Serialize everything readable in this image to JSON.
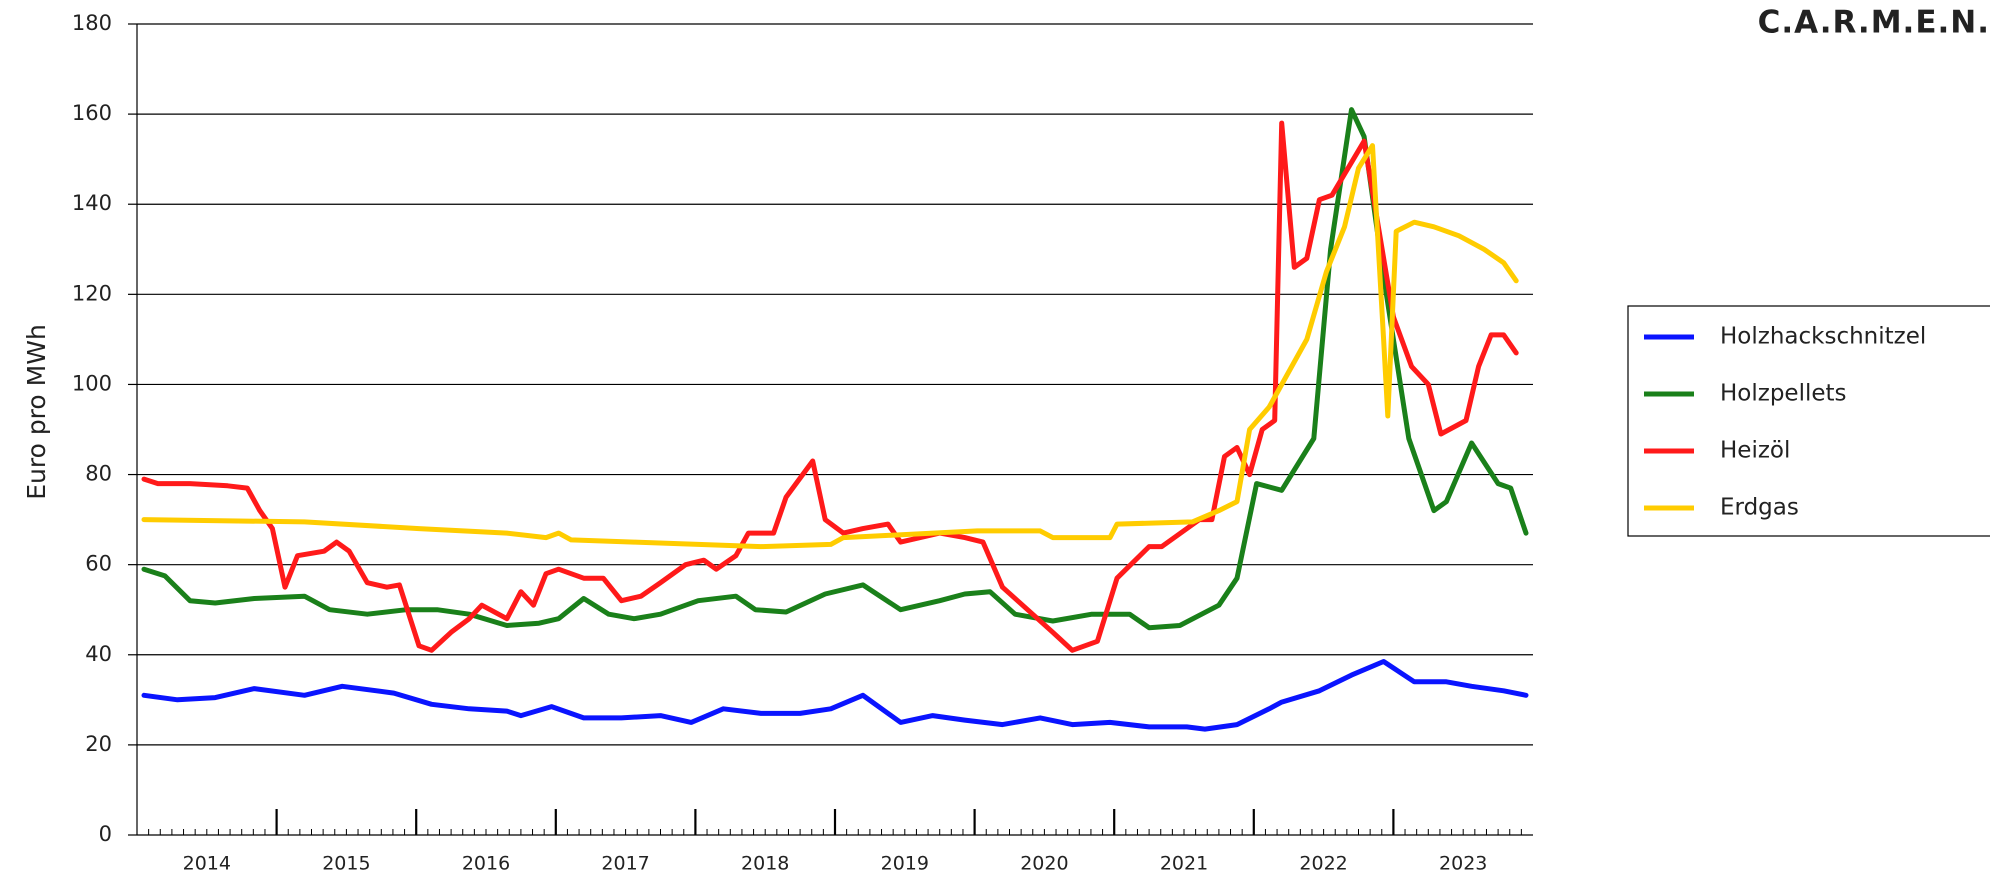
{
  "chart_data": {
    "type": "line",
    "brand": "C.A.R.M.E.N.",
    "y_label": "Euro pro MWh",
    "xlim": [
      2014,
      2024
    ],
    "ylim": [
      0,
      180
    ],
    "yticks": [
      0,
      20,
      40,
      60,
      80,
      100,
      120,
      140,
      160,
      180
    ],
    "xticks": [
      {
        "value": 2014.5,
        "label": "2014"
      },
      {
        "value": 2015.5,
        "label": "2015"
      },
      {
        "value": 2016.5,
        "label": "2016"
      },
      {
        "value": 2017.5,
        "label": "2017"
      },
      {
        "value": 2018.5,
        "label": "2018"
      },
      {
        "value": 2019.5,
        "label": "2019"
      },
      {
        "value": 2020.5,
        "label": "2020"
      },
      {
        "value": 2021.5,
        "label": "2021"
      },
      {
        "value": 2022.5,
        "label": "2022"
      },
      {
        "value": 2023.5,
        "label": "2023"
      }
    ],
    "grid": true,
    "legend": "right",
    "series": [
      {
        "name": "Holzhackschnitzel",
        "color": "#0a14ff",
        "x": [
          2014.05,
          2014.29,
          2014.56,
          2014.84,
          2015.2,
          2015.47,
          2015.84,
          2016.11,
          2016.38,
          2016.65,
          2016.75,
          2016.97,
          2017.2,
          2017.47,
          2017.75,
          2017.97,
          2018.2,
          2018.47,
          2018.75,
          2018.97,
          2019.2,
          2019.47,
          2019.7,
          2019.93,
          2020.2,
          2020.47,
          2020.7,
          2020.97,
          2021.25,
          2021.52,
          2021.65,
          2021.88,
          2022.11,
          2022.2,
          2022.47,
          2022.7,
          2022.93,
          2023.15,
          2023.38,
          2023.56,
          2023.79,
          2023.95
        ],
        "values": [
          31,
          30,
          30.5,
          32.5,
          31,
          33,
          31.5,
          29,
          28,
          27.5,
          26.5,
          28.5,
          26,
          26,
          26.5,
          25,
          28,
          27,
          27,
          28,
          31,
          25,
          26.5,
          25.5,
          24.5,
          26,
          24.5,
          25,
          24,
          24,
          23.5,
          24.5,
          28,
          29.5,
          32,
          35.5,
          38.5,
          34,
          34,
          33,
          32,
          31
        ]
      },
      {
        "name": "Holzpellets",
        "color": "#1a801a",
        "x": [
          2014.05,
          2014.2,
          2014.38,
          2014.56,
          2014.84,
          2015.2,
          2015.38,
          2015.65,
          2015.93,
          2016.15,
          2016.38,
          2016.65,
          2016.88,
          2017.02,
          2017.2,
          2017.38,
          2017.56,
          2017.75,
          2018.02,
          2018.29,
          2018.43,
          2018.65,
          2018.93,
          2019.2,
          2019.47,
          2019.75,
          2019.93,
          2020.11,
          2020.29,
          2020.56,
          2020.84,
          2021.11,
          2021.25,
          2021.47,
          2021.75,
          2021.88,
          2022.02,
          2022.2,
          2022.43,
          2022.55,
          2022.7,
          2022.79,
          2022.93,
          2023.11,
          2023.29,
          2023.38,
          2023.56,
          2023.75,
          2023.84,
          2023.95
        ],
        "values": [
          59,
          57.5,
          52,
          51.5,
          52.5,
          53,
          50,
          49,
          50,
          50,
          49,
          46.5,
          47,
          48,
          52.5,
          49,
          48,
          49,
          52,
          53,
          50,
          49.5,
          53.5,
          55.5,
          50,
          52,
          53.5,
          54,
          49,
          47.5,
          49,
          49,
          46,
          46.5,
          51,
          57,
          78,
          76.5,
          88,
          130,
          161,
          155,
          124,
          88,
          72,
          74,
          87,
          78,
          77,
          67
        ]
      },
      {
        "name": "Heizöl",
        "color": "#ff1a1a",
        "x": [
          2014.05,
          2014.15,
          2014.38,
          2014.65,
          2014.79,
          2014.88,
          2014.97,
          2015.06,
          2015.15,
          2015.34,
          2015.43,
          2015.52,
          2015.65,
          2015.79,
          2015.88,
          2016.02,
          2016.11,
          2016.25,
          2016.38,
          2016.47,
          2016.65,
          2016.75,
          2016.84,
          2016.93,
          2017.02,
          2017.2,
          2017.34,
          2017.47,
          2017.61,
          2017.75,
          2017.93,
          2018.06,
          2018.15,
          2018.29,
          2018.38,
          2018.56,
          2018.65,
          2018.84,
          2018.93,
          2019.06,
          2019.2,
          2019.38,
          2019.47,
          2019.61,
          2019.75,
          2019.93,
          2020.06,
          2020.2,
          2020.38,
          2020.56,
          2020.7,
          2020.88,
          2021.02,
          2021.25,
          2021.34,
          2021.52,
          2021.61,
          2021.7,
          2021.79,
          2021.88,
          2021.97,
          2022.06,
          2022.15,
          2022.2,
          2022.29,
          2022.38,
          2022.47,
          2022.56,
          2022.79,
          2023.0,
          2023.13,
          2023.25,
          2023.34,
          2023.52,
          2023.61,
          2023.7,
          2023.79,
          2023.88
        ],
        "values": [
          79,
          78,
          78,
          77.5,
          77,
          72,
          68,
          55,
          62,
          63,
          65,
          63,
          56,
          55,
          55.5,
          42,
          41,
          45,
          48,
          51,
          48,
          54,
          51,
          58,
          59,
          57,
          57,
          52,
          53,
          56,
          60,
          61,
          59,
          62,
          67,
          67,
          75,
          83,
          70,
          67,
          68,
          69,
          65,
          66,
          67,
          66,
          65,
          55,
          50,
          45,
          41,
          43,
          57,
          64,
          64,
          68,
          70,
          70,
          84,
          86,
          80,
          90,
          92,
          158,
          126,
          128,
          141,
          142,
          154,
          115,
          104,
          100,
          89,
          92,
          104,
          111,
          111,
          107
        ]
      },
      {
        "name": "Erdgas",
        "color": "#ffcc00",
        "x": [
          2014.05,
          2015.2,
          2016.02,
          2016.65,
          2016.93,
          2017.02,
          2017.11,
          2017.56,
          2018.02,
          2018.47,
          2018.97,
          2019.06,
          2019.38,
          2020.02,
          2020.47,
          2020.56,
          2020.84,
          2020.97,
          2021.02,
          2021.56,
          2021.75,
          2021.88,
          2021.97,
          2022.11,
          2022.38,
          2022.52,
          2022.65,
          2022.75,
          2022.85,
          2022.93,
          2022.96,
          2023.02,
          2023.15,
          2023.29,
          2023.47,
          2023.65,
          2023.79,
          2023.88
        ],
        "values": [
          70,
          69.5,
          68,
          67,
          66,
          67,
          65.5,
          65,
          64.5,
          64,
          64.5,
          66,
          66.5,
          67.5,
          67.5,
          66,
          66,
          66,
          69,
          69.5,
          72,
          74,
          90,
          95,
          110,
          125,
          135,
          148,
          153,
          110,
          93,
          134,
          136,
          135,
          133,
          130,
          127,
          123
        ]
      }
    ]
  }
}
